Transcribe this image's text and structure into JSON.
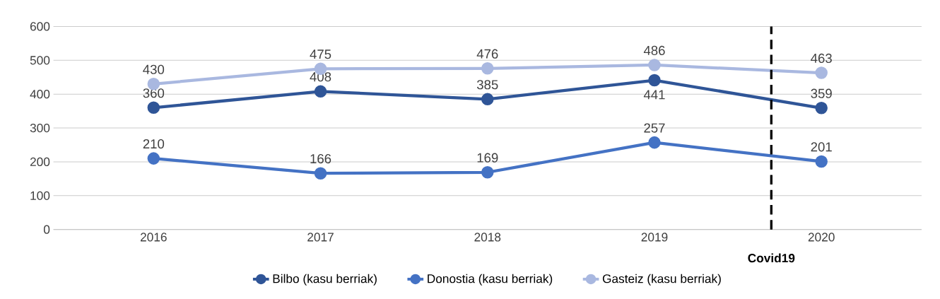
{
  "chart_data": {
    "type": "line",
    "x": [
      2016,
      2017,
      2018,
      2019,
      2020
    ],
    "series": [
      {
        "name": "Bilbo (kasu berriak)",
        "color": "#2f5597",
        "values": [
          360,
          408,
          385,
          441,
          359
        ]
      },
      {
        "name": "Donostia (kasu berriak)",
        "color": "#4472c4",
        "values": [
          210,
          166,
          169,
          257,
          201
        ]
      },
      {
        "name": "Gasteiz (kasu berriak)",
        "color": "#a9b8e0",
        "values": [
          430,
          475,
          476,
          486,
          463
        ]
      }
    ],
    "xlim": [
      2015.4,
      2020.6
    ],
    "xticks": [
      2016,
      2017,
      2018,
      2019,
      2020
    ],
    "ylim": [
      0,
      600
    ],
    "yticks": [
      0,
      100,
      200,
      300,
      400,
      500,
      600
    ],
    "grid": "y",
    "legend": "bottom",
    "marker": "circle",
    "line_style": "solid",
    "data_labels": true,
    "ref_lines": [
      {
        "axis": "x",
        "value": 2019.7,
        "label": "Covid19",
        "color": "#000000",
        "line_style": "dashed"
      }
    ]
  }
}
